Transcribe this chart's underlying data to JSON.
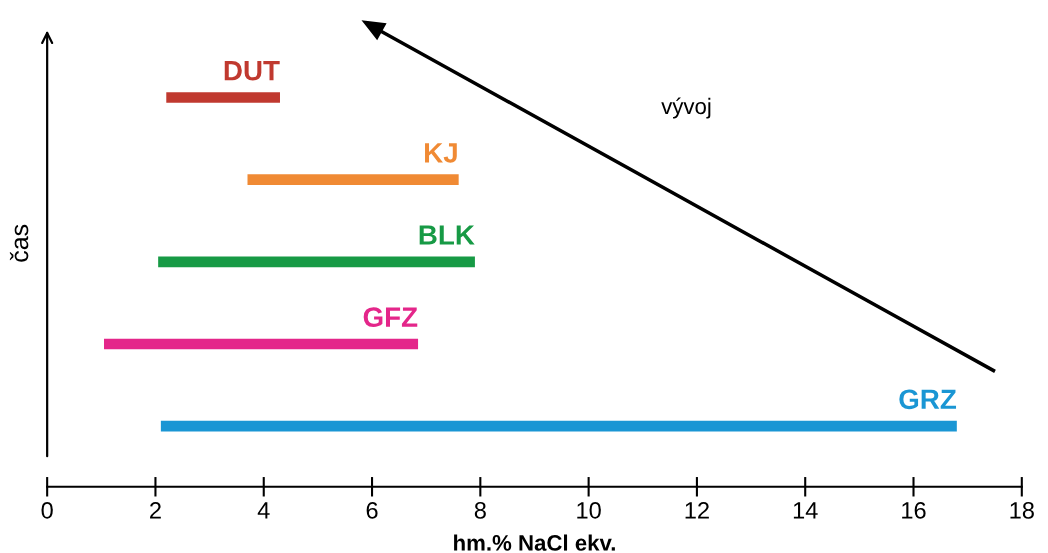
{
  "chart_data": {
    "type": "bar",
    "orientation": "horizontal",
    "categories": [
      "DUT",
      "KJ",
      "BLK",
      "GFZ",
      "GRZ"
    ],
    "base": [
      2.2,
      3.7,
      2.05,
      1.05,
      2.1
    ],
    "values": [
      2.1,
      3.9,
      5.85,
      5.8,
      14.7
    ],
    "colors": [
      "#c0392f",
      "#f08a34",
      "#179a45",
      "#e4268a",
      "#1a96d4"
    ],
    "xlim": [
      0,
      18
    ],
    "xticks": [
      0,
      2,
      4,
      6,
      8,
      10,
      12,
      14,
      16,
      18
    ],
    "xlabel": "hm.% NaCl ekv.",
    "ylabel": "čas",
    "tick_labels": "x",
    "grid": false,
    "legend": false,
    "annotations": [
      "vývoj"
    ]
  }
}
